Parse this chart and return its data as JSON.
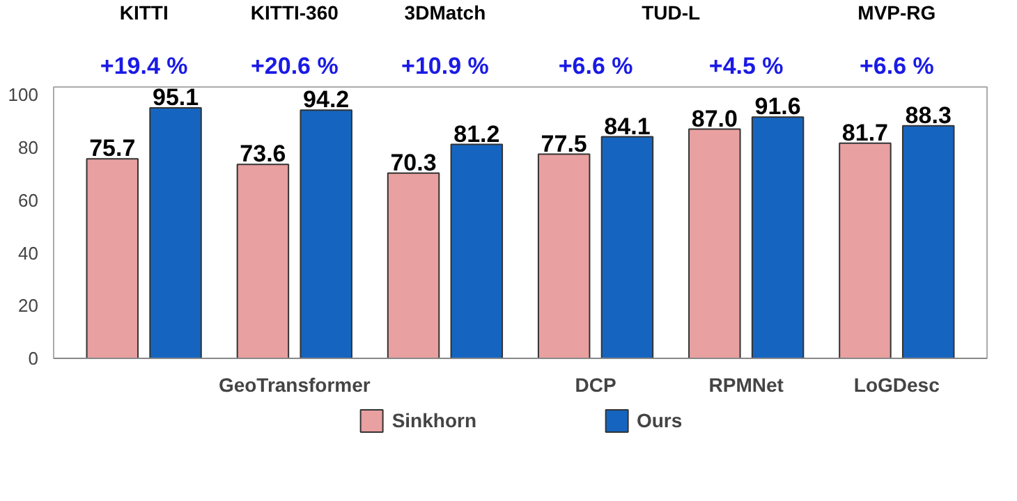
{
  "chart_data": {
    "type": "bar",
    "categories": [
      null,
      "GeoTransformer",
      null,
      "DCP",
      "RPMNet",
      "LoGDesc"
    ],
    "series": [
      {
        "name": "Sinkhorn",
        "color": "#e8a0a0",
        "values": [
          75.7,
          73.6,
          70.3,
          77.5,
          87.0,
          81.7
        ],
        "value_labels": [
          "75.7",
          "73.6",
          "70.3",
          "77.5",
          "87.0",
          "81.7"
        ]
      },
      {
        "name": "Ours",
        "color": "#1565c0",
        "values": [
          95.1,
          94.2,
          81.2,
          84.1,
          91.6,
          88.3
        ],
        "value_labels": [
          "95.1",
          "94.2",
          "81.2",
          "84.1",
          "91.6",
          "88.3"
        ]
      }
    ],
    "ylim": [
      0,
      103
    ],
    "yticks": [
      0,
      20,
      40,
      60,
      80,
      100
    ],
    "grid": false,
    "legend": "bottom",
    "annotations": [
      "KITTI",
      "KITTI-360",
      "3DMatch",
      "TUD-L",
      "MVP-RG",
      "+19.4 %",
      "+20.6 %",
      "+10.9 %",
      "+6.6 %",
      "+4.5 %",
      "+6.6 %"
    ]
  }
}
